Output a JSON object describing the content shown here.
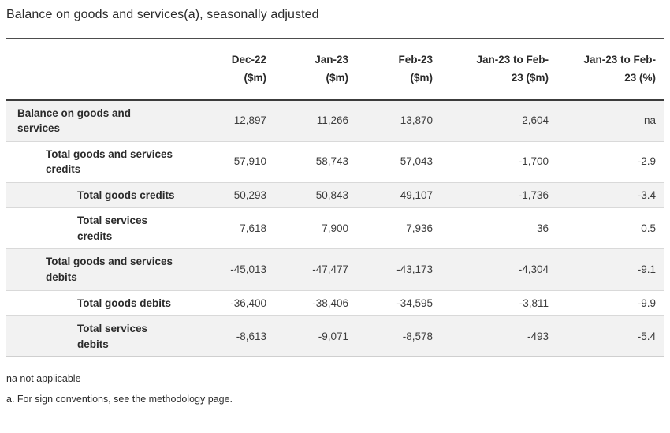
{
  "chart_data": {
    "type": "table",
    "title": "Balance on goods and services(a), seasonally adjusted",
    "columns": [
      "Dec-22\n($m)",
      "Jan-23\n($m)",
      "Feb-23\n($m)",
      "Jan-23 to Feb-\n23 ($m)",
      "Jan-23 to Feb-\n23 (%)"
    ],
    "rows": [
      {
        "label": "Balance on goods and\nservices",
        "indent": 0,
        "values": [
          "12,897",
          "11,266",
          "13,870",
          "2,604",
          "na"
        ]
      },
      {
        "label": "Total goods and services\ncredits",
        "indent": 1,
        "values": [
          "57,910",
          "58,743",
          "57,043",
          "-1,700",
          "-2.9"
        ]
      },
      {
        "label": "Total goods credits",
        "indent": 2,
        "values": [
          "50,293",
          "50,843",
          "49,107",
          "-1,736",
          "-3.4"
        ]
      },
      {
        "label": "Total services\ncredits",
        "indent": 2,
        "values": [
          "7,618",
          "7,900",
          "7,936",
          "36",
          "0.5"
        ]
      },
      {
        "label": "Total goods and services\ndebits",
        "indent": 1,
        "values": [
          "-45,013",
          "-47,477",
          "-43,173",
          "-4,304",
          "-9.1"
        ]
      },
      {
        "label": "Total goods debits",
        "indent": 2,
        "values": [
          "-36,400",
          "-38,406",
          "-34,595",
          "-3,811",
          "-9.9"
        ]
      },
      {
        "label": "Total services\ndebits",
        "indent": 2,
        "values": [
          "-8,613",
          "-9,071",
          "-8,578",
          "-493",
          "-5.4"
        ]
      }
    ],
    "footnotes": [
      "na not applicable",
      "a. For sign conventions, see the methodology page."
    ]
  },
  "colors": {
    "text": "#2b2b2b",
    "num_text": "#3c3c3c",
    "row_shade": "#f2f2f2",
    "row_divider": "#d9d9d9",
    "header_rule": "#3c3c3c",
    "top_rule": "#4d4d4d",
    "bottom_rule": "#cfcfcf",
    "background": "#ffffff"
  }
}
